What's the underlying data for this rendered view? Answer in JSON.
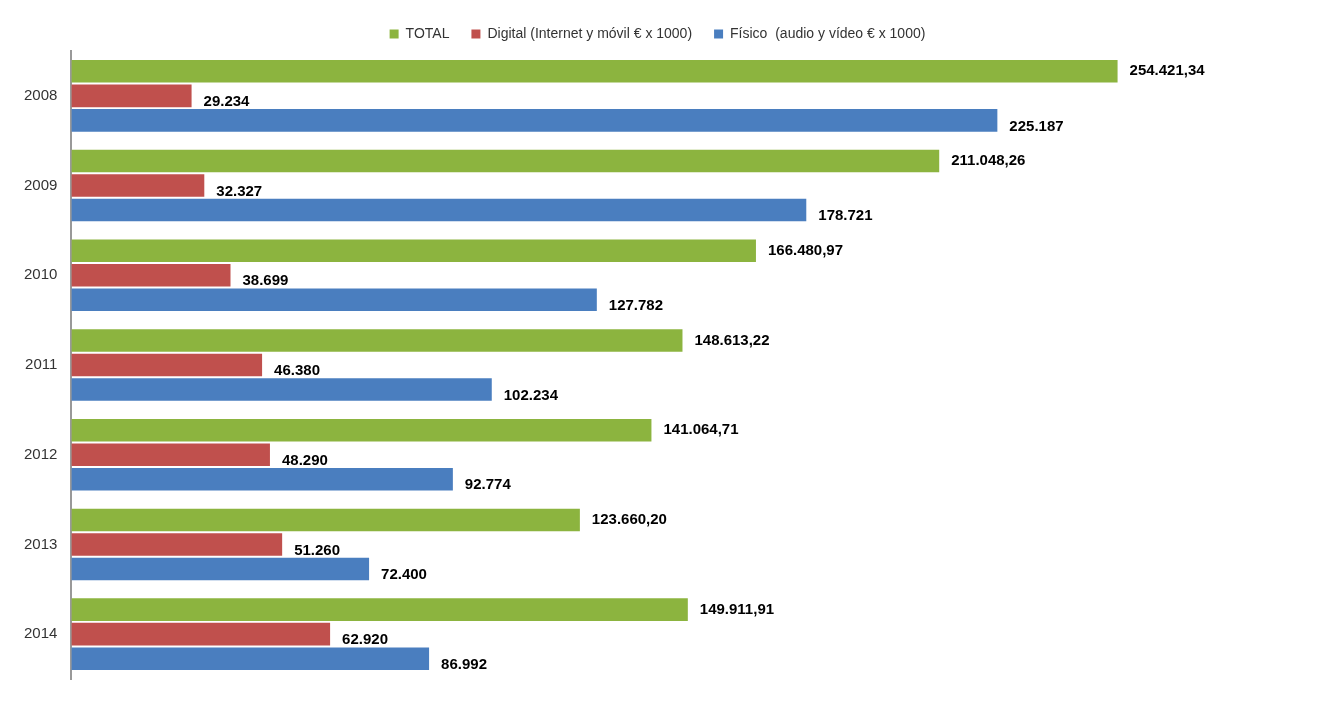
{
  "chart_data": {
    "type": "bar",
    "orientation": "horizontal",
    "categories": [
      "2008",
      "2009",
      "2010",
      "2011",
      "2012",
      "2013",
      "2014"
    ],
    "series": [
      {
        "name": "TOTAL",
        "color": "#8cb43f",
        "values": [
          254421.34,
          211048.26,
          166480.97,
          148613.22,
          141064.71,
          123660.2,
          149911.91
        ],
        "value_labels": [
          "254.421,34",
          "211.048,26",
          "166.480,97",
          "148.613,22",
          "141.064,71",
          "123.660,20",
          "149.911,91"
        ]
      },
      {
        "name": "Digital (Internet y móvil € x 1000)",
        "color": "#c0504d",
        "values": [
          29234,
          32327,
          38699,
          46380,
          48290,
          51260,
          62920
        ],
        "value_labels": [
          "29.234",
          "32.327",
          "38.699",
          "46.380",
          "48.290",
          "51.260",
          "62.920"
        ]
      },
      {
        "name": "Físico  (audio y vídeo € x 1000)",
        "color": "#4a7ebf",
        "values": [
          225187,
          178721,
          127782,
          102234,
          92774,
          72400,
          86992
        ],
        "value_labels": [
          "225.187",
          "178.721",
          "127.782",
          "102.234",
          "92.774",
          "72.400",
          "86.992"
        ]
      }
    ],
    "legend": "top",
    "grid": false,
    "tick_labels": "y"
  }
}
